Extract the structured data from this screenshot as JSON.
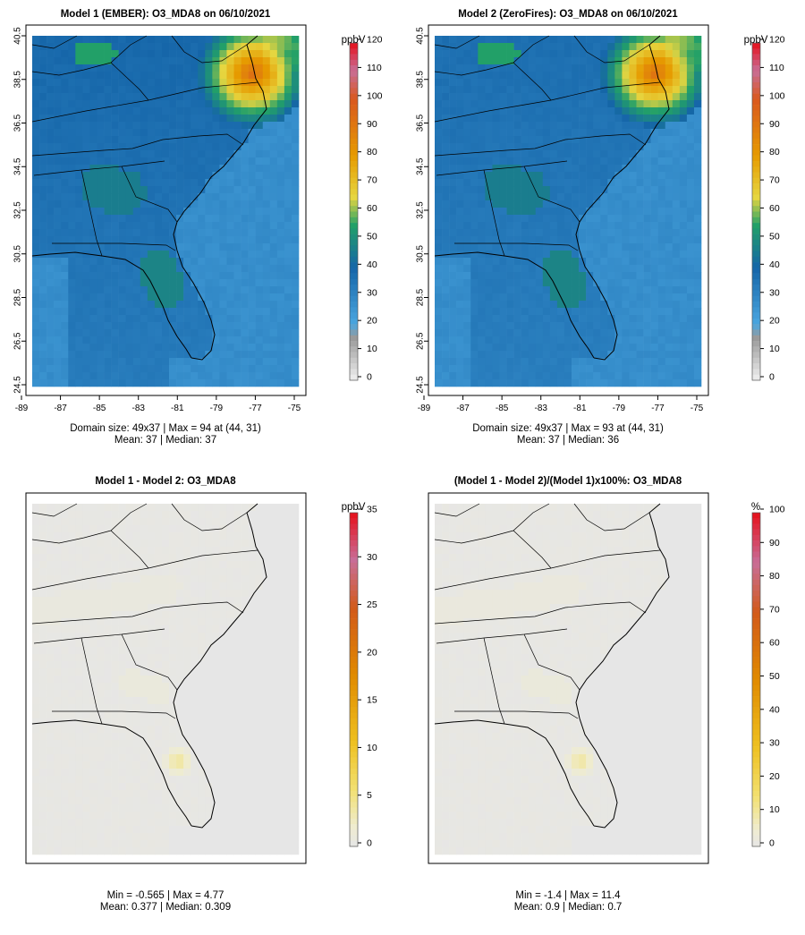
{
  "colors": {
    "land_line": "#000000",
    "diff_background": "#e6e6e6",
    "diff_pale": "#f0ecd2"
  },
  "chart_data": [
    {
      "type": "heatmap",
      "title": "Model 1 (EMBER): O3_MDA8 on 06/10/2021",
      "colorbar_units": "ppbV",
      "colorbar_ticks": [
        "0",
        "10",
        "20",
        "30",
        "40",
        "50",
        "60",
        "70",
        "80",
        "90",
        "100",
        "110",
        "120"
      ],
      "colorbar_range": [
        0,
        120
      ],
      "colorbar_stops": [
        {
          "v": 0,
          "c": "#f0f0f0"
        },
        {
          "v": 15,
          "c": "#9a9a9a"
        },
        {
          "v": 20,
          "c": "#4aa6e0"
        },
        {
          "v": 40,
          "c": "#1565a8"
        },
        {
          "v": 55,
          "c": "#22a068"
        },
        {
          "v": 65,
          "c": "#e6d640"
        },
        {
          "v": 80,
          "c": "#e69a00"
        },
        {
          "v": 100,
          "c": "#d9581e"
        },
        {
          "v": 110,
          "c": "#c86e98"
        },
        {
          "v": 120,
          "c": "#e6101a"
        }
      ],
      "x_ticks": [
        "-89",
        "-87",
        "-85",
        "-83",
        "-81",
        "-79",
        "-77",
        "-75"
      ],
      "x_range": [
        -89,
        -75
      ],
      "y_ticks": [
        "24.5",
        "26.5",
        "28.5",
        "30.5",
        "32.5",
        "34.5",
        "36.5",
        "38.5",
        "40.5"
      ],
      "y_range": [
        24.5,
        40.5
      ],
      "grid_size": [
        49,
        37
      ],
      "max_location": [
        44,
        31
      ],
      "summary_line1": "Domain size: 49x37 | Max = 94 at (44, 31)",
      "summary_line2": "Mean: 37 |  Median: 37",
      "field": {
        "base": 32,
        "offshore": 26,
        "hotspot": 94,
        "inland_boost": 6
      }
    },
    {
      "type": "heatmap",
      "title": "Model 2 (ZeroFires): O3_MDA8 on 06/10/2021",
      "colorbar_units": "ppbV",
      "colorbar_ticks": [
        "0",
        "10",
        "20",
        "30",
        "40",
        "50",
        "60",
        "70",
        "80",
        "90",
        "100",
        "110",
        "120"
      ],
      "colorbar_range": [
        0,
        120
      ],
      "colorbar_stops": [
        {
          "v": 0,
          "c": "#f0f0f0"
        },
        {
          "v": 15,
          "c": "#9a9a9a"
        },
        {
          "v": 20,
          "c": "#4aa6e0"
        },
        {
          "v": 40,
          "c": "#1565a8"
        },
        {
          "v": 55,
          "c": "#22a068"
        },
        {
          "v": 65,
          "c": "#e6d640"
        },
        {
          "v": 80,
          "c": "#e69a00"
        },
        {
          "v": 100,
          "c": "#d9581e"
        },
        {
          "v": 110,
          "c": "#c86e98"
        },
        {
          "v": 120,
          "c": "#e6101a"
        }
      ],
      "x_ticks": [
        "-89",
        "-87",
        "-85",
        "-83",
        "-81",
        "-79",
        "-77",
        "-75"
      ],
      "x_range": [
        -89,
        -75
      ],
      "y_ticks": [
        "24.5",
        "26.5",
        "28.5",
        "30.5",
        "32.5",
        "34.5",
        "36.5",
        "38.5",
        "40.5"
      ],
      "y_range": [
        24.5,
        40.5
      ],
      "grid_size": [
        49,
        37
      ],
      "max_location": [
        44,
        31
      ],
      "summary_line1": "Domain size: 49x37 | Max = 93 at (44, 31)",
      "summary_line2": "Mean: 37 |  Median: 36",
      "field": {
        "base": 31,
        "offshore": 26,
        "hotspot": 93,
        "inland_boost": 5
      }
    },
    {
      "type": "heatmap",
      "title": "Model 1 - Model 2: O3_MDA8",
      "colorbar_units": "ppbV",
      "colorbar_ticks": [
        "0",
        "5",
        "10",
        "15",
        "20",
        "25",
        "30",
        "35"
      ],
      "colorbar_range": [
        0,
        35
      ],
      "colorbar_stops": [
        {
          "v": 0,
          "c": "#e6e6e6"
        },
        {
          "v": 2,
          "c": "#efecd0"
        },
        {
          "v": 6,
          "c": "#f2e070"
        },
        {
          "v": 11,
          "c": "#eec020"
        },
        {
          "v": 18,
          "c": "#e08a00"
        },
        {
          "v": 25,
          "c": "#d25a1a"
        },
        {
          "v": 30,
          "c": "#c86e98"
        },
        {
          "v": 35,
          "c": "#e6101a"
        }
      ],
      "x_range": [
        -89,
        -75
      ],
      "y_range": [
        24.5,
        40.5
      ],
      "min": -0.565,
      "max": 4.77,
      "summary_line1": "Min = -0.565 | Max = 4.77",
      "summary_line2": "Mean: 0.377 |  Median: 0.309",
      "field": {
        "base": 0.3,
        "hotspot": 4.77
      }
    },
    {
      "type": "heatmap",
      "title": "(Model 1 - Model 2)/(Model 1)x100%: O3_MDA8",
      "colorbar_units": "%",
      "colorbar_ticks": [
        "0",
        "10",
        "20",
        "30",
        "40",
        "50",
        "60",
        "70",
        "80",
        "90",
        "100"
      ],
      "colorbar_range": [
        0,
        100
      ],
      "colorbar_stops": [
        {
          "v": 0,
          "c": "#e6e6e6"
        },
        {
          "v": 5,
          "c": "#efecd0"
        },
        {
          "v": 15,
          "c": "#f2e070"
        },
        {
          "v": 30,
          "c": "#eec020"
        },
        {
          "v": 50,
          "c": "#e08a00"
        },
        {
          "v": 70,
          "c": "#d25a1a"
        },
        {
          "v": 85,
          "c": "#c86e98"
        },
        {
          "v": 100,
          "c": "#e6101a"
        }
      ],
      "x_range": [
        -89,
        -75
      ],
      "y_range": [
        24.5,
        40.5
      ],
      "min": -1.4,
      "max": 11.4,
      "summary_line1": "Min = -1.4 | Max = 11.4",
      "summary_line2": "Mean: 0.9 |  Median: 0.7",
      "field": {
        "base": 0.8,
        "hotspot": 11.4
      }
    }
  ]
}
